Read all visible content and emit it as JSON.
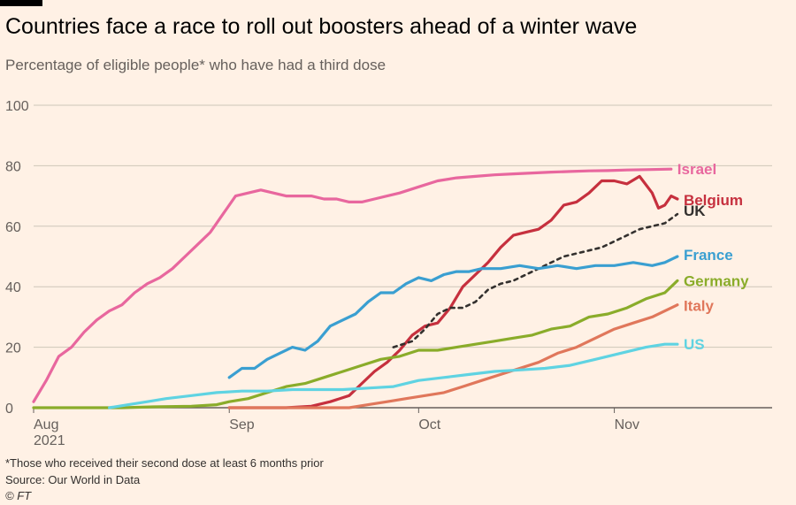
{
  "title": "Countries face a race to roll out boosters ahead of a winter wave",
  "subtitle": "Percentage of eligible people* who have had a third dose",
  "footnote": "*Those who received their second dose at least 6 months prior",
  "source": "Source: Our World in Data",
  "copyright": "© FT",
  "colors": {
    "background": "#fff1e5",
    "Israel": "#e8679e",
    "Belgium": "#c6303e",
    "UK": "#33302e",
    "France": "#3a9fd1",
    "Germany": "#8aac2a",
    "Italy": "#e0775b",
    "US": "#5fd3e2"
  },
  "chart_data": {
    "type": "line",
    "title": "Countries face a race to roll out boosters ahead of a winter wave",
    "subtitle": "Percentage of eligible people* who have had a third dose",
    "x_type": "date",
    "xlim": [
      "2021-08-01",
      "2021-11-26"
    ],
    "ylim": [
      0,
      100
    ],
    "yticks": [
      0,
      20,
      40,
      60,
      80,
      100
    ],
    "xticks": [
      {
        "date": "2021-08-01",
        "label": "Aug",
        "sublabel": "2021"
      },
      {
        "date": "2021-09-01",
        "label": "Sep",
        "sublabel": ""
      },
      {
        "date": "2021-10-01",
        "label": "Oct",
        "sublabel": ""
      },
      {
        "date": "2021-11-01",
        "label": "Nov",
        "sublabel": ""
      }
    ],
    "grid": true,
    "legend": "end-labels",
    "series": [
      {
        "name": "Israel",
        "dashed": false,
        "points": [
          [
            "2021-08-01",
            2
          ],
          [
            "2021-08-03",
            9
          ],
          [
            "2021-08-05",
            17
          ],
          [
            "2021-08-07",
            20
          ],
          [
            "2021-08-09",
            25
          ],
          [
            "2021-08-11",
            29
          ],
          [
            "2021-08-13",
            32
          ],
          [
            "2021-08-15",
            34
          ],
          [
            "2021-08-17",
            38
          ],
          [
            "2021-08-19",
            41
          ],
          [
            "2021-08-21",
            43
          ],
          [
            "2021-08-23",
            46
          ],
          [
            "2021-08-25",
            50
          ],
          [
            "2021-08-27",
            54
          ],
          [
            "2021-08-29",
            58
          ],
          [
            "2021-08-31",
            64
          ],
          [
            "2021-09-02",
            70
          ],
          [
            "2021-09-04",
            71
          ],
          [
            "2021-09-06",
            72
          ],
          [
            "2021-09-08",
            71
          ],
          [
            "2021-09-10",
            70
          ],
          [
            "2021-09-12",
            70
          ],
          [
            "2021-09-14",
            70
          ],
          [
            "2021-09-16",
            69
          ],
          [
            "2021-09-18",
            69
          ],
          [
            "2021-09-20",
            68
          ],
          [
            "2021-09-22",
            68
          ],
          [
            "2021-09-24",
            69
          ],
          [
            "2021-09-26",
            70
          ],
          [
            "2021-09-28",
            71
          ],
          [
            "2021-10-01",
            73
          ],
          [
            "2021-10-04",
            75
          ],
          [
            "2021-10-07",
            76
          ],
          [
            "2021-10-10",
            76.5
          ],
          [
            "2021-10-13",
            77
          ],
          [
            "2021-10-16",
            77.3
          ],
          [
            "2021-10-19",
            77.6
          ],
          [
            "2021-10-22",
            77.9
          ],
          [
            "2021-10-25",
            78.1
          ],
          [
            "2021-10-28",
            78.3
          ],
          [
            "2021-10-31",
            78.4
          ],
          [
            "2021-11-03",
            78.6
          ],
          [
            "2021-11-06",
            78.7
          ],
          [
            "2021-11-10",
            78.9
          ]
        ]
      },
      {
        "name": "Belgium",
        "dashed": false,
        "points": [
          [
            "2021-09-01",
            0
          ],
          [
            "2021-09-10",
            0
          ],
          [
            "2021-09-14",
            0.5
          ],
          [
            "2021-09-17",
            2
          ],
          [
            "2021-09-20",
            4
          ],
          [
            "2021-09-22",
            8
          ],
          [
            "2021-09-24",
            12
          ],
          [
            "2021-09-26",
            15
          ],
          [
            "2021-09-28",
            19
          ],
          [
            "2021-09-30",
            24
          ],
          [
            "2021-10-02",
            27
          ],
          [
            "2021-10-04",
            28
          ],
          [
            "2021-10-06",
            33
          ],
          [
            "2021-10-08",
            40
          ],
          [
            "2021-10-10",
            44
          ],
          [
            "2021-10-12",
            48
          ],
          [
            "2021-10-14",
            53
          ],
          [
            "2021-10-16",
            57
          ],
          [
            "2021-10-18",
            58
          ],
          [
            "2021-10-20",
            59
          ],
          [
            "2021-10-22",
            62
          ],
          [
            "2021-10-24",
            67
          ],
          [
            "2021-10-26",
            68
          ],
          [
            "2021-10-28",
            71
          ],
          [
            "2021-10-30",
            75
          ],
          [
            "2021-11-01",
            75
          ],
          [
            "2021-11-03",
            74
          ],
          [
            "2021-11-05",
            76.5
          ],
          [
            "2021-11-07",
            71
          ],
          [
            "2021-11-08",
            66
          ],
          [
            "2021-11-09",
            67
          ],
          [
            "2021-11-10",
            70
          ],
          [
            "2021-11-11",
            69
          ]
        ]
      },
      {
        "name": "UK",
        "dashed": true,
        "points": [
          [
            "2021-09-27",
            20
          ],
          [
            "2021-09-30",
            22
          ],
          [
            "2021-10-02",
            26
          ],
          [
            "2021-10-04",
            31
          ],
          [
            "2021-10-06",
            33
          ],
          [
            "2021-10-08",
            33
          ],
          [
            "2021-10-10",
            35
          ],
          [
            "2021-10-12",
            39
          ],
          [
            "2021-10-14",
            41
          ],
          [
            "2021-10-16",
            42
          ],
          [
            "2021-10-18",
            44
          ],
          [
            "2021-10-20",
            46
          ],
          [
            "2021-10-22",
            48
          ],
          [
            "2021-10-24",
            50
          ],
          [
            "2021-10-26",
            51
          ],
          [
            "2021-10-28",
            52
          ],
          [
            "2021-10-30",
            53
          ],
          [
            "2021-11-01",
            55
          ],
          [
            "2021-11-03",
            57
          ],
          [
            "2021-11-05",
            59
          ],
          [
            "2021-11-07",
            60
          ],
          [
            "2021-11-09",
            61
          ],
          [
            "2021-11-11",
            64
          ]
        ]
      },
      {
        "name": "France",
        "dashed": false,
        "points": [
          [
            "2021-09-01",
            10
          ],
          [
            "2021-09-03",
            13
          ],
          [
            "2021-09-05",
            13
          ],
          [
            "2021-09-07",
            16
          ],
          [
            "2021-09-09",
            18
          ],
          [
            "2021-09-11",
            20
          ],
          [
            "2021-09-13",
            19
          ],
          [
            "2021-09-15",
            22
          ],
          [
            "2021-09-17",
            27
          ],
          [
            "2021-09-19",
            29
          ],
          [
            "2021-09-21",
            31
          ],
          [
            "2021-09-23",
            35
          ],
          [
            "2021-09-25",
            38
          ],
          [
            "2021-09-27",
            38
          ],
          [
            "2021-09-29",
            41
          ],
          [
            "2021-10-01",
            43
          ],
          [
            "2021-10-03",
            42
          ],
          [
            "2021-10-05",
            44
          ],
          [
            "2021-10-07",
            45
          ],
          [
            "2021-10-09",
            45
          ],
          [
            "2021-10-11",
            46
          ],
          [
            "2021-10-14",
            46
          ],
          [
            "2021-10-17",
            47
          ],
          [
            "2021-10-20",
            46
          ],
          [
            "2021-10-23",
            47
          ],
          [
            "2021-10-26",
            46
          ],
          [
            "2021-10-29",
            47
          ],
          [
            "2021-11-01",
            47
          ],
          [
            "2021-11-04",
            48
          ],
          [
            "2021-11-07",
            47
          ],
          [
            "2021-11-09",
            48
          ],
          [
            "2021-11-11",
            50
          ]
        ]
      },
      {
        "name": "Germany",
        "dashed": false,
        "points": [
          [
            "2021-08-01",
            0
          ],
          [
            "2021-08-15",
            0
          ],
          [
            "2021-08-20",
            0.3
          ],
          [
            "2021-08-26",
            0.5
          ],
          [
            "2021-08-30",
            1
          ],
          [
            "2021-09-01",
            2
          ],
          [
            "2021-09-04",
            3
          ],
          [
            "2021-09-07",
            5
          ],
          [
            "2021-09-10",
            7
          ],
          [
            "2021-09-13",
            8
          ],
          [
            "2021-09-16",
            10
          ],
          [
            "2021-09-19",
            12
          ],
          [
            "2021-09-22",
            14
          ],
          [
            "2021-09-25",
            16
          ],
          [
            "2021-09-28",
            17
          ],
          [
            "2021-10-01",
            19
          ],
          [
            "2021-10-04",
            19
          ],
          [
            "2021-10-07",
            20
          ],
          [
            "2021-10-10",
            21
          ],
          [
            "2021-10-13",
            22
          ],
          [
            "2021-10-16",
            23
          ],
          [
            "2021-10-19",
            24
          ],
          [
            "2021-10-22",
            26
          ],
          [
            "2021-10-25",
            27
          ],
          [
            "2021-10-28",
            30
          ],
          [
            "2021-10-31",
            31
          ],
          [
            "2021-11-03",
            33
          ],
          [
            "2021-11-06",
            36
          ],
          [
            "2021-11-09",
            38
          ],
          [
            "2021-11-11",
            42
          ]
        ]
      },
      {
        "name": "Italy",
        "dashed": false,
        "points": [
          [
            "2021-09-01",
            0
          ],
          [
            "2021-09-20",
            0
          ],
          [
            "2021-09-23",
            1
          ],
          [
            "2021-09-26",
            2
          ],
          [
            "2021-09-29",
            3
          ],
          [
            "2021-10-02",
            4
          ],
          [
            "2021-10-05",
            5
          ],
          [
            "2021-10-08",
            7
          ],
          [
            "2021-10-11",
            9
          ],
          [
            "2021-10-14",
            11
          ],
          [
            "2021-10-17",
            13
          ],
          [
            "2021-10-20",
            15
          ],
          [
            "2021-10-23",
            18
          ],
          [
            "2021-10-26",
            20
          ],
          [
            "2021-10-29",
            23
          ],
          [
            "2021-11-01",
            26
          ],
          [
            "2021-11-04",
            28
          ],
          [
            "2021-11-07",
            30
          ],
          [
            "2021-11-09",
            32
          ],
          [
            "2021-11-11",
            34
          ]
        ]
      },
      {
        "name": "US",
        "dashed": false,
        "points": [
          [
            "2021-08-13",
            0
          ],
          [
            "2021-08-16",
            1
          ],
          [
            "2021-08-19",
            2
          ],
          [
            "2021-08-22",
            3
          ],
          [
            "2021-08-26",
            4
          ],
          [
            "2021-08-30",
            5
          ],
          [
            "2021-09-03",
            5.5
          ],
          [
            "2021-09-07",
            5.5
          ],
          [
            "2021-09-11",
            6
          ],
          [
            "2021-09-15",
            6
          ],
          [
            "2021-09-19",
            6
          ],
          [
            "2021-09-23",
            6.5
          ],
          [
            "2021-09-27",
            7
          ],
          [
            "2021-10-01",
            9
          ],
          [
            "2021-10-05",
            10
          ],
          [
            "2021-10-09",
            11
          ],
          [
            "2021-10-13",
            12
          ],
          [
            "2021-10-17",
            12.5
          ],
          [
            "2021-10-21",
            13
          ],
          [
            "2021-10-25",
            14
          ],
          [
            "2021-10-29",
            16
          ],
          [
            "2021-11-02",
            18
          ],
          [
            "2021-11-06",
            20
          ],
          [
            "2021-11-09",
            21
          ],
          [
            "2021-11-11",
            21
          ]
        ]
      }
    ]
  }
}
